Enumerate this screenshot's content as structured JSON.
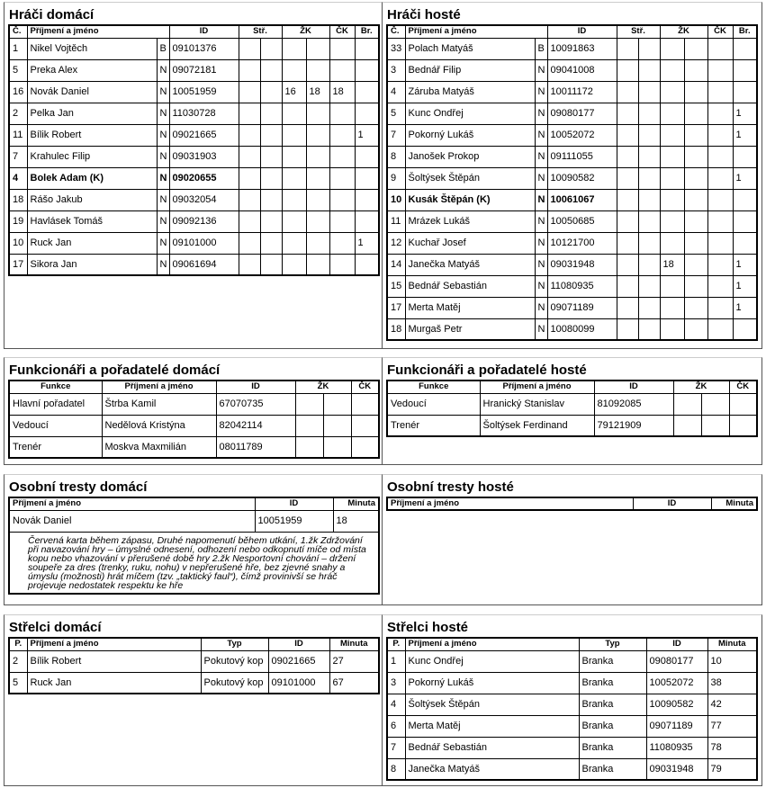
{
  "home_players": {
    "title": "Hráči domácí",
    "headers": [
      "Č.",
      "Příjmení a jméno",
      "ID",
      "Stř.",
      "ŽK",
      "ČK",
      "Br."
    ],
    "rows": [
      {
        "no": "1",
        "name": "Nikel Vojtěch",
        "pos": "B",
        "id": "09101376",
        "s1": "",
        "s2": "",
        "z1": "",
        "z2": "",
        "ck": "",
        "br": ""
      },
      {
        "no": "5",
        "name": "Preka Alex",
        "pos": "N",
        "id": "09072181",
        "s1": "",
        "s2": "",
        "z1": "",
        "z2": "",
        "ck": "",
        "br": ""
      },
      {
        "no": "16",
        "name": "Novák Daniel",
        "pos": "N",
        "id": "10051959",
        "s1": "",
        "s2": "",
        "z1": "16",
        "z2": "18",
        "ck": "18",
        "br": ""
      },
      {
        "no": "2",
        "name": "Pelka Jan",
        "pos": "N",
        "id": "11030728",
        "s1": "",
        "s2": "",
        "z1": "",
        "z2": "",
        "ck": "",
        "br": ""
      },
      {
        "no": "11",
        "name": "Bílik Robert",
        "pos": "N",
        "id": "09021665",
        "s1": "",
        "s2": "",
        "z1": "",
        "z2": "",
        "ck": "",
        "br": "1"
      },
      {
        "no": "7",
        "name": "Krahulec Filip",
        "pos": "N",
        "id": "09031903",
        "s1": "",
        "s2": "",
        "z1": "",
        "z2": "",
        "ck": "",
        "br": ""
      },
      {
        "no": "4",
        "name": "Bolek Adam (K)",
        "pos": "N",
        "id": "09020655",
        "s1": "",
        "s2": "",
        "z1": "",
        "z2": "",
        "ck": "",
        "br": "",
        "captain": true
      },
      {
        "no": "18",
        "name": "Rášo Jakub",
        "pos": "N",
        "id": "09032054",
        "s1": "",
        "s2": "",
        "z1": "",
        "z2": "",
        "ck": "",
        "br": ""
      },
      {
        "no": "19",
        "name": "Havlásek Tomáš",
        "pos": "N",
        "id": "09092136",
        "s1": "",
        "s2": "",
        "z1": "",
        "z2": "",
        "ck": "",
        "br": ""
      },
      {
        "no": "10",
        "name": "Ruck Jan",
        "pos": "N",
        "id": "09101000",
        "s1": "",
        "s2": "",
        "z1": "",
        "z2": "",
        "ck": "",
        "br": "1"
      },
      {
        "no": "17",
        "name": "Sikora Jan",
        "pos": "N",
        "id": "09061694",
        "s1": "",
        "s2": "",
        "z1": "",
        "z2": "",
        "ck": "",
        "br": ""
      }
    ]
  },
  "away_players": {
    "title": "Hráči hosté",
    "headers": [
      "Č.",
      "Příjmení a jméno",
      "ID",
      "Stř.",
      "ŽK",
      "ČK",
      "Br."
    ],
    "rows": [
      {
        "no": "33",
        "name": "Polach Matyáš",
        "pos": "B",
        "id": "10091863",
        "s1": "",
        "s2": "",
        "z1": "",
        "z2": "",
        "ck": "",
        "br": ""
      },
      {
        "no": "3",
        "name": "Bednář Filip",
        "pos": "N",
        "id": "09041008",
        "s1": "",
        "s2": "",
        "z1": "",
        "z2": "",
        "ck": "",
        "br": ""
      },
      {
        "no": "4",
        "name": "Záruba Matyáš",
        "pos": "N",
        "id": "10011172",
        "s1": "",
        "s2": "",
        "z1": "",
        "z2": "",
        "ck": "",
        "br": ""
      },
      {
        "no": "5",
        "name": "Kunc Ondřej",
        "pos": "N",
        "id": "09080177",
        "s1": "",
        "s2": "",
        "z1": "",
        "z2": "",
        "ck": "",
        "br": "1"
      },
      {
        "no": "7",
        "name": "Pokorný Lukáš",
        "pos": "N",
        "id": "10052072",
        "s1": "",
        "s2": "",
        "z1": "",
        "z2": "",
        "ck": "",
        "br": "1"
      },
      {
        "no": "8",
        "name": "Janošek Prokop",
        "pos": "N",
        "id": "09111055",
        "s1": "",
        "s2": "",
        "z1": "",
        "z2": "",
        "ck": "",
        "br": ""
      },
      {
        "no": "9",
        "name": "Šoltýsek Štěpán",
        "pos": "N",
        "id": "10090582",
        "s1": "",
        "s2": "",
        "z1": "",
        "z2": "",
        "ck": "",
        "br": "1"
      },
      {
        "no": "10",
        "name": "Kusák Štěpán (K)",
        "pos": "N",
        "id": "10061067",
        "s1": "",
        "s2": "",
        "z1": "",
        "z2": "",
        "ck": "",
        "br": "",
        "captain": true
      },
      {
        "no": "11",
        "name": "Mrázek Lukáš",
        "pos": "N",
        "id": "10050685",
        "s1": "",
        "s2": "",
        "z1": "",
        "z2": "",
        "ck": "",
        "br": ""
      },
      {
        "no": "12",
        "name": "Kuchař Josef",
        "pos": "N",
        "id": "10121700",
        "s1": "",
        "s2": "",
        "z1": "",
        "z2": "",
        "ck": "",
        "br": ""
      },
      {
        "no": "14",
        "name": "Janečka Matyáš",
        "pos": "N",
        "id": "09031948",
        "s1": "",
        "s2": "",
        "z1": "18",
        "z2": "",
        "ck": "",
        "br": "1"
      },
      {
        "no": "15",
        "name": "Bednář Sebastián",
        "pos": "N",
        "id": "11080935",
        "s1": "",
        "s2": "",
        "z1": "",
        "z2": "",
        "ck": "",
        "br": "1"
      },
      {
        "no": "17",
        "name": "Merta Matěj",
        "pos": "N",
        "id": "09071189",
        "s1": "",
        "s2": "",
        "z1": "",
        "z2": "",
        "ck": "",
        "br": "1"
      },
      {
        "no": "18",
        "name": "Murgaš Petr",
        "pos": "N",
        "id": "10080099",
        "s1": "",
        "s2": "",
        "z1": "",
        "z2": "",
        "ck": "",
        "br": ""
      }
    ]
  },
  "home_officials": {
    "title": "Funkcionáři a pořadatelé domácí",
    "headers": [
      "Funkce",
      "Příjmení a jméno",
      "ID",
      "ŽK",
      "ČK"
    ],
    "rows": [
      {
        "role": "Hlavní pořadatel",
        "name": "Štrba Kamil",
        "id": "67070735"
      },
      {
        "role": "Vedoucí",
        "name": "Nedělová Kristýna",
        "id": "82042114"
      },
      {
        "role": "Trenér",
        "name": "Moskva Maxmilián",
        "id": "08011789"
      }
    ]
  },
  "away_officials": {
    "title": "Funkcionáři a pořadatelé hosté",
    "headers": [
      "Funkce",
      "Příjmení a jméno",
      "ID",
      "ŽK",
      "ČK"
    ],
    "rows": [
      {
        "role": "Vedoucí",
        "name": "Hranický Stanislav",
        "id": "81092085"
      },
      {
        "role": "Trenér",
        "name": "Šoltýsek Ferdinand",
        "id": "79121909"
      }
    ]
  },
  "home_penalties": {
    "title": "Osobní tresty domácí",
    "headers": [
      "Příjmení a jméno",
      "ID",
      "Minuta"
    ],
    "rows": [
      {
        "name": "Novák Daniel",
        "id": "10051959",
        "minute": "18",
        "note": "Červená karta během zápasu, Druhé napomenutí během utkání, 1.žk Zdržování při navazování hry – úmyslné odnesení, odhození nebo odkopnutí míče od místa kopu nebo vhazování v přerušené době hry 2.žk Nesportovní chování – držení soupeře za dres (trenky, ruku, nohu) v nepřerušené hře, bez zjevné snahy a úmyslu (možnosti) hrát míčem (tzv. „taktický faul“), čímž provinivší se hráč projevuje nedostatek respektu ke hře"
      }
    ]
  },
  "away_penalties": {
    "title": "Osobní tresty hosté",
    "headers": [
      "Příjmení a jméno",
      "ID",
      "Minuta"
    ],
    "rows": []
  },
  "home_scorers": {
    "title": "Střelci domácí",
    "headers": [
      "P.",
      "Příjmení a jméno",
      "Typ",
      "ID",
      "Minuta"
    ],
    "rows": [
      {
        "p": "2",
        "name": "Bílik Robert",
        "type": "Pokutový kop",
        "id": "09021665",
        "minute": "27"
      },
      {
        "p": "5",
        "name": "Ruck Jan",
        "type": "Pokutový kop",
        "id": "09101000",
        "minute": "67"
      }
    ]
  },
  "away_scorers": {
    "title": "Střelci hosté",
    "headers": [
      "P.",
      "Příjmení a jméno",
      "Typ",
      "ID",
      "Minuta"
    ],
    "rows": [
      {
        "p": "1",
        "name": "Kunc Ondřej",
        "type": "Branka",
        "id": "09080177",
        "minute": "10"
      },
      {
        "p": "3",
        "name": "Pokorný Lukáš",
        "type": "Branka",
        "id": "10052072",
        "minute": "38"
      },
      {
        "p": "4",
        "name": "Šoltýsek Štěpán",
        "type": "Branka",
        "id": "10090582",
        "minute": "42"
      },
      {
        "p": "6",
        "name": "Merta Matěj",
        "type": "Branka",
        "id": "09071189",
        "minute": "77"
      },
      {
        "p": "7",
        "name": "Bednář Sebastián",
        "type": "Branka",
        "id": "11080935",
        "minute": "78"
      },
      {
        "p": "8",
        "name": "Janečka Matyáš",
        "type": "Branka",
        "id": "09031948",
        "minute": "79"
      }
    ]
  }
}
